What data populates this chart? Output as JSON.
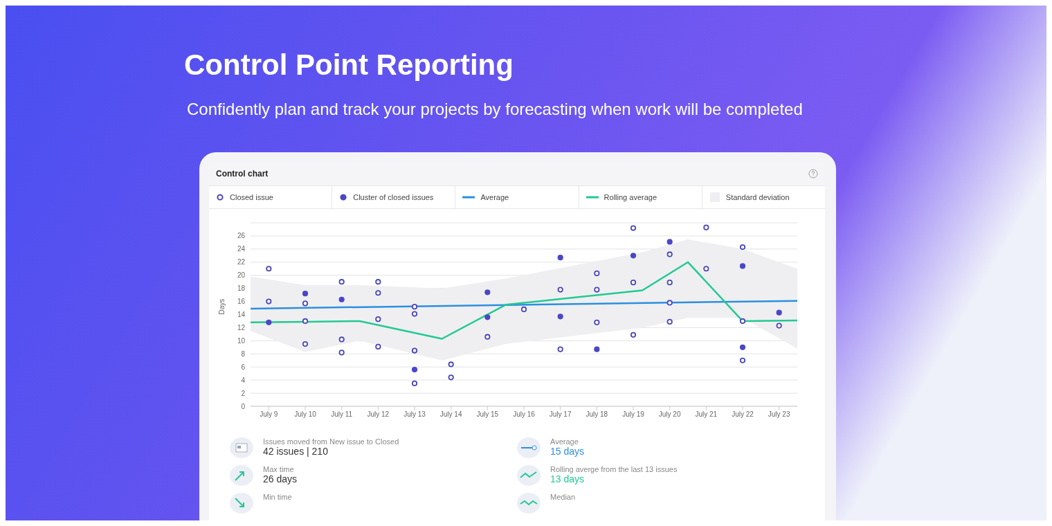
{
  "chart_data": {
    "type": "scatter",
    "title": "Control Point Reporting",
    "subtitle": "Confidently plan and track your projects by forecasting when work will be completed",
    "ylabel": "Days",
    "annotations": [
      "Control chart",
      "Issues moved from New issue to Closed",
      "42 issues | 210",
      "Max time",
      "26 days",
      "Min time",
      "Average",
      "15 days",
      "Rolling averge from the last 13 issues",
      "13 days",
      "Median",
      "Standard deviation"
    ],
    "legend": "top",
    "grid": "y",
    "marker": "circle",
    "xlim": [
      "--07-08T12:00",
      "--07-23T12:00"
    ],
    "xticks": [
      {
        "value": "--07-09",
        "label": "July 9"
      },
      {
        "value": "--07-10",
        "label": "July 10"
      },
      {
        "value": "--07-11",
        "label": "July 11"
      },
      {
        "value": "--07-12",
        "label": "July 12"
      },
      {
        "value": "--07-13",
        "label": "July 13"
      },
      {
        "value": "--07-14",
        "label": "July 14"
      },
      {
        "value": "--07-15",
        "label": "July 15"
      },
      {
        "value": "--07-16",
        "label": "July 16"
      },
      {
        "value": "--07-17",
        "label": "July 17"
      },
      {
        "value": "--07-18",
        "label": "July 18"
      },
      {
        "value": "--07-19",
        "label": "July 19"
      },
      {
        "value": "--07-20",
        "label": "July 20"
      },
      {
        "value": "--07-21",
        "label": "July 21"
      },
      {
        "value": "--07-22",
        "label": "July 22"
      },
      {
        "value": "--07-23",
        "label": "July 23"
      }
    ],
    "ylim": [
      0,
      28
    ],
    "yticks": [
      0,
      2,
      4,
      6,
      8,
      10,
      12,
      14,
      16,
      18,
      20,
      22,
      24,
      26,
      {
        "value": 28,
        "label": null
      }
    ],
    "series": [
      {
        "name": "Closed issue",
        "color": "#4b47b8",
        "x": [
          "--07-09",
          "--07-09",
          "--07-10",
          "--07-10",
          "--07-10",
          "--07-11",
          "--07-11",
          "--07-11",
          "--07-12",
          "--07-12",
          "--07-12",
          "--07-12",
          "--07-13",
          "--07-13",
          "--07-13",
          "--07-13",
          "--07-14",
          "--07-14",
          "--07-15",
          "--07-16",
          "--07-17",
          "--07-17",
          "--07-18",
          "--07-18",
          "--07-18",
          "--07-19",
          "--07-19",
          "--07-19",
          "--07-20",
          "--07-20",
          "--07-20",
          "--07-20",
          "--07-21",
          "--07-21",
          "--07-22",
          "--07-22",
          "--07-22",
          "--07-23"
        ],
        "values": [
          21,
          16,
          15.7,
          13,
          9.5,
          19,
          10.2,
          8.2,
          19,
          17.3,
          13.3,
          9.1,
          15.2,
          14.1,
          8.5,
          3.5,
          6.4,
          4.4,
          10.6,
          14.8,
          17.8,
          8.7,
          20.3,
          17.8,
          12.8,
          27.2,
          18.9,
          10.9,
          23.2,
          18.9,
          15.8,
          12.9,
          27.3,
          21,
          24.3,
          13,
          7,
          12.3
        ]
      },
      {
        "name": "Cluster of closed issues",
        "color": "#4b47c7",
        "marker": "circle",
        "x": [
          "--07-09",
          "--07-10",
          "--07-11",
          "--07-13",
          "--07-15",
          "--07-15",
          "--07-17",
          "--07-17",
          "--07-18",
          "--07-19",
          "--07-20",
          "--07-22",
          "--07-22",
          "--07-23"
        ],
        "values": [
          12.8,
          17.2,
          16.3,
          5.6,
          17.4,
          13.6,
          22.7,
          13.7,
          8.7,
          23,
          25.1,
          21.4,
          9,
          14.3
        ]
      },
      {
        "type": "line",
        "name": "Average",
        "color": "#2b8fe0",
        "marker": "none",
        "x": [
          "--07-08T12:00",
          "--07-23T12:00"
        ],
        "values": [
          14.9,
          16.1
        ]
      },
      {
        "type": "line",
        "name": "Rolling average",
        "color": "#22c993",
        "marker": "none",
        "x": [
          "--07-08T12:00",
          "--07-10",
          "--07-11T12:00",
          "--07-13T18:00",
          "--07-15T12:00",
          "--07-19T06:00",
          "--07-20T12:00",
          "--07-22",
          "--07-23T12:00"
        ],
        "values": [
          12.8,
          12.9,
          13,
          10.3,
          15.5,
          17.7,
          22,
          13,
          13.1
        ],
        "lower": [
          11.5,
          8.3,
          10,
          7,
          9.5,
          12,
          13.5,
          13.5,
          8.8
        ],
        "upper": [
          19.8,
          18.5,
          18.5,
          18,
          19.5,
          23.5,
          25.5,
          24,
          21
        ]
      }
    ]
  }
}
